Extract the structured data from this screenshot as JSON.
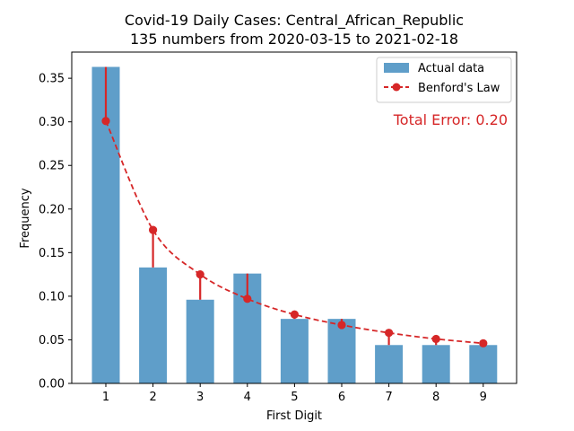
{
  "chart_data": {
    "type": "bar",
    "title": "Covid-19 Daily Cases: Central_African_Republic",
    "subtitle": "135 numbers from 2020-03-15 to 2021-02-18",
    "xlabel": "First Digit",
    "ylabel": "Frequency",
    "categories": [
      "1",
      "2",
      "3",
      "4",
      "5",
      "6",
      "7",
      "8",
      "9"
    ],
    "ylim": [
      0,
      0.38
    ],
    "yticks": [
      "0.00",
      "0.05",
      "0.10",
      "0.15",
      "0.20",
      "0.25",
      "0.30",
      "0.35"
    ],
    "grid": false,
    "legend_position": "top-right",
    "series": [
      {
        "name": "Actual data",
        "kind": "bar",
        "color": "#5f9ec9",
        "values": [
          0.363,
          0.133,
          0.096,
          0.126,
          0.074,
          0.074,
          0.044,
          0.044,
          0.044
        ]
      },
      {
        "name": "Benford's Law",
        "kind": "line",
        "style": "dashed",
        "marker": "circle",
        "color": "#d62728",
        "values": [
          0.301,
          0.176,
          0.125,
          0.097,
          0.079,
          0.067,
          0.058,
          0.051,
          0.046
        ]
      }
    ],
    "annotation": "Total Error: 0.20",
    "annotation_color": "#d62728"
  }
}
